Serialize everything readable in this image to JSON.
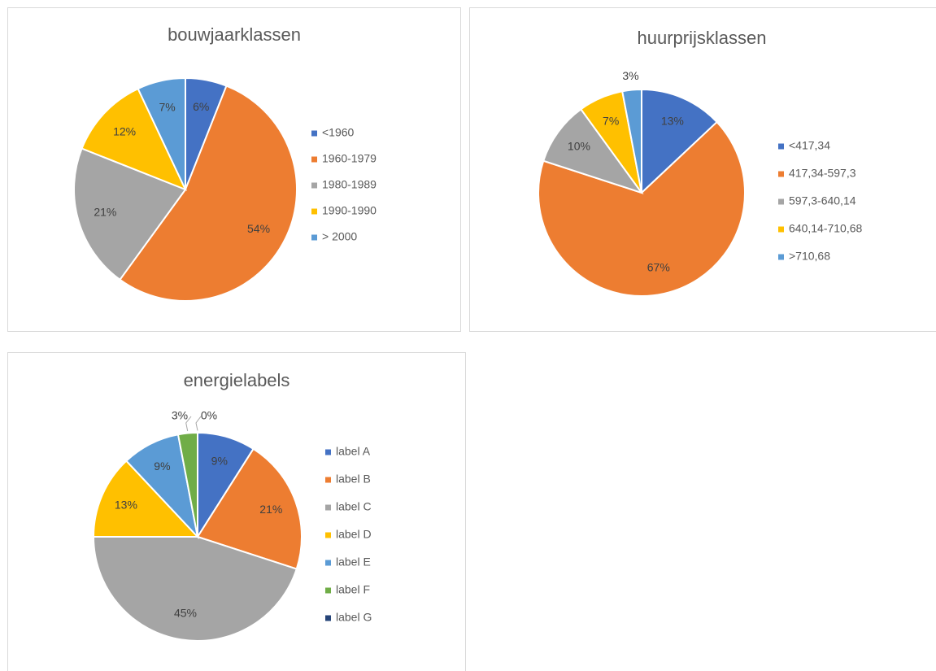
{
  "chart_data": [
    {
      "type": "pie",
      "title": "bouwjaarklassen",
      "categories": [
        "<1960",
        "1960-1979",
        "1980-1989",
        "1990-1990",
        "> 2000"
      ],
      "values": [
        6,
        54,
        21,
        12,
        7
      ],
      "value_labels": [
        "6%",
        "54%",
        "21%",
        "12%",
        "7%"
      ],
      "colors": [
        "#4472c4",
        "#ed7d31",
        "#a5a5a5",
        "#ffc000",
        "#5b9bd5"
      ],
      "legend": "right"
    },
    {
      "type": "pie",
      "title": "huurprijsklassen",
      "categories": [
        "<417,34",
        "417,34-597,3",
        "597,3-640,14",
        "640,14-710,68",
        ">710,68"
      ],
      "values": [
        13,
        67,
        10,
        7,
        3
      ],
      "value_labels": [
        "13%",
        "67%",
        "10%",
        "7%",
        "3%"
      ],
      "colors": [
        "#4472c4",
        "#ed7d31",
        "#a5a5a5",
        "#ffc000",
        "#5b9bd5"
      ],
      "legend": "right"
    },
    {
      "type": "pie",
      "title": "energielabels",
      "categories": [
        "label A",
        "label B",
        "label C",
        "label D",
        "label E",
        "label F",
        "label G"
      ],
      "values": [
        9,
        21,
        45,
        13,
        9,
        3,
        0
      ],
      "value_labels": [
        "9%",
        "21%",
        "45%",
        "13%",
        "9%",
        "3%",
        "0%"
      ],
      "colors": [
        "#4472c4",
        "#ed7d31",
        "#a5a5a5",
        "#ffc000",
        "#5b9bd5",
        "#70ad47",
        "#264478"
      ],
      "legend": "right"
    }
  ]
}
